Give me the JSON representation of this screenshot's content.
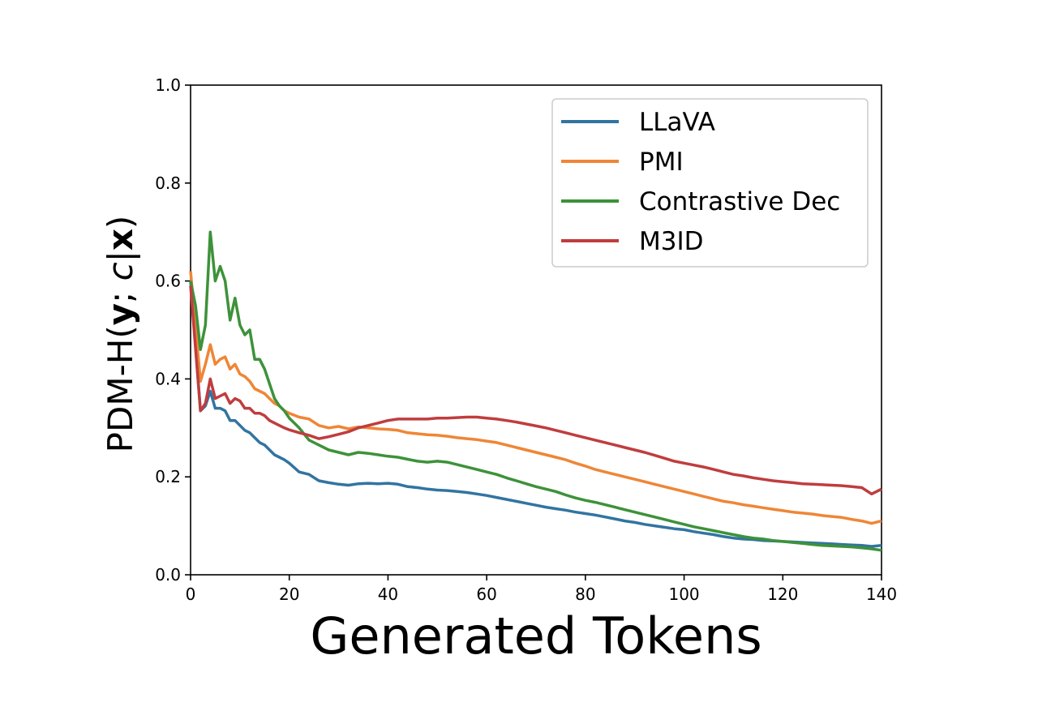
{
  "chart_data": {
    "type": "line",
    "xlabel": "Generated Tokens",
    "ylabel": {
      "prefix": "PDM-H(",
      "y": "y",
      "sep": "; ",
      "c": "c",
      "bar": "|",
      "x": "x",
      "suffix": ")"
    },
    "xlim": [
      0,
      140
    ],
    "ylim": [
      0.0,
      1.0
    ],
    "xticks": [
      "0",
      "20",
      "40",
      "60",
      "80",
      "100",
      "120",
      "140"
    ],
    "xtick_values": [
      0,
      20,
      40,
      60,
      80,
      100,
      120,
      140
    ],
    "yticks": [
      "0.0",
      "0.2",
      "0.4",
      "0.6",
      "0.8",
      "1.0"
    ],
    "ytick_values": [
      0.0,
      0.2,
      0.4,
      0.6,
      0.8,
      1.0
    ],
    "grid": false,
    "legend_position": "upper right",
    "series": [
      {
        "name": "LLaVA",
        "color": "#3274a1",
        "x": [
          0,
          2,
          3,
          4,
          5,
          6,
          7,
          8,
          9,
          10,
          11,
          12,
          13,
          14,
          15,
          16,
          17,
          18,
          19,
          20,
          22,
          24,
          26,
          28,
          30,
          32,
          34,
          36,
          38,
          40,
          42,
          44,
          46,
          48,
          50,
          52,
          54,
          56,
          58,
          60,
          62,
          64,
          66,
          68,
          70,
          72,
          74,
          76,
          78,
          80,
          82,
          84,
          86,
          88,
          90,
          92,
          94,
          96,
          98,
          100,
          102,
          104,
          106,
          108,
          110,
          112,
          114,
          116,
          118,
          120,
          122,
          124,
          126,
          128,
          130,
          132,
          134,
          136,
          138,
          140
        ],
        "y": [
          0.6,
          0.335,
          0.345,
          0.375,
          0.34,
          0.34,
          0.335,
          0.315,
          0.315,
          0.305,
          0.295,
          0.29,
          0.28,
          0.27,
          0.265,
          0.255,
          0.245,
          0.24,
          0.235,
          0.228,
          0.21,
          0.205,
          0.192,
          0.188,
          0.185,
          0.183,
          0.186,
          0.187,
          0.186,
          0.187,
          0.185,
          0.18,
          0.178,
          0.175,
          0.173,
          0.172,
          0.17,
          0.168,
          0.165,
          0.162,
          0.158,
          0.154,
          0.15,
          0.146,
          0.142,
          0.138,
          0.135,
          0.132,
          0.128,
          0.125,
          0.122,
          0.118,
          0.114,
          0.11,
          0.107,
          0.103,
          0.1,
          0.097,
          0.094,
          0.092,
          0.088,
          0.085,
          0.082,
          0.078,
          0.075,
          0.073,
          0.072,
          0.07,
          0.069,
          0.068,
          0.067,
          0.066,
          0.065,
          0.064,
          0.063,
          0.062,
          0.061,
          0.06,
          0.058,
          0.06
        ]
      },
      {
        "name": "PMI",
        "color": "#ef8636",
        "x": [
          0,
          2,
          3,
          4,
          5,
          6,
          7,
          8,
          9,
          10,
          11,
          12,
          13,
          14,
          15,
          16,
          17,
          18,
          19,
          20,
          22,
          24,
          26,
          28,
          30,
          32,
          34,
          36,
          38,
          40,
          42,
          44,
          46,
          48,
          50,
          52,
          54,
          56,
          58,
          60,
          62,
          64,
          66,
          68,
          70,
          72,
          74,
          76,
          78,
          80,
          82,
          84,
          86,
          88,
          90,
          92,
          94,
          96,
          98,
          100,
          102,
          104,
          106,
          108,
          110,
          112,
          114,
          116,
          118,
          120,
          122,
          124,
          126,
          128,
          130,
          132,
          134,
          136,
          138,
          140
        ],
        "y": [
          0.62,
          0.395,
          0.43,
          0.47,
          0.43,
          0.44,
          0.445,
          0.42,
          0.43,
          0.41,
          0.405,
          0.395,
          0.38,
          0.375,
          0.37,
          0.36,
          0.35,
          0.345,
          0.335,
          0.33,
          0.322,
          0.318,
          0.305,
          0.3,
          0.303,
          0.298,
          0.302,
          0.3,
          0.298,
          0.297,
          0.295,
          0.29,
          0.288,
          0.286,
          0.285,
          0.283,
          0.28,
          0.278,
          0.276,
          0.273,
          0.27,
          0.265,
          0.26,
          0.255,
          0.25,
          0.245,
          0.24,
          0.235,
          0.228,
          0.222,
          0.215,
          0.21,
          0.205,
          0.2,
          0.195,
          0.19,
          0.185,
          0.18,
          0.175,
          0.17,
          0.165,
          0.16,
          0.155,
          0.15,
          0.147,
          0.143,
          0.14,
          0.137,
          0.134,
          0.131,
          0.128,
          0.126,
          0.124,
          0.121,
          0.119,
          0.117,
          0.113,
          0.11,
          0.105,
          0.11
        ]
      },
      {
        "name": "Contrastive Dec",
        "color": "#3d923a",
        "x": [
          0,
          1,
          2,
          3,
          4,
          5,
          6,
          7,
          8,
          9,
          10,
          11,
          12,
          13,
          14,
          15,
          16,
          17,
          18,
          19,
          20,
          22,
          24,
          26,
          28,
          30,
          32,
          34,
          36,
          38,
          40,
          42,
          44,
          46,
          48,
          50,
          52,
          54,
          56,
          58,
          60,
          62,
          64,
          66,
          68,
          70,
          72,
          74,
          76,
          78,
          80,
          82,
          84,
          86,
          88,
          90,
          92,
          94,
          96,
          98,
          100,
          102,
          104,
          106,
          108,
          110,
          112,
          114,
          116,
          118,
          120,
          122,
          124,
          126,
          128,
          130,
          132,
          134,
          136,
          138,
          140
        ],
        "y": [
          0.6,
          0.55,
          0.46,
          0.51,
          0.7,
          0.6,
          0.63,
          0.6,
          0.52,
          0.565,
          0.51,
          0.49,
          0.5,
          0.44,
          0.44,
          0.42,
          0.39,
          0.36,
          0.345,
          0.335,
          0.32,
          0.3,
          0.275,
          0.265,
          0.255,
          0.25,
          0.245,
          0.25,
          0.248,
          0.245,
          0.242,
          0.24,
          0.236,
          0.232,
          0.23,
          0.232,
          0.23,
          0.225,
          0.22,
          0.215,
          0.21,
          0.205,
          0.198,
          0.192,
          0.186,
          0.18,
          0.175,
          0.17,
          0.163,
          0.157,
          0.152,
          0.148,
          0.143,
          0.138,
          0.133,
          0.128,
          0.123,
          0.118,
          0.113,
          0.108,
          0.103,
          0.098,
          0.094,
          0.09,
          0.086,
          0.082,
          0.078,
          0.075,
          0.073,
          0.07,
          0.068,
          0.066,
          0.064,
          0.062,
          0.06,
          0.059,
          0.058,
          0.057,
          0.055,
          0.053,
          0.05
        ]
      },
      {
        "name": "M3ID",
        "color": "#c03d3e",
        "x": [
          0,
          2,
          3,
          4,
          5,
          6,
          7,
          8,
          9,
          10,
          11,
          12,
          13,
          14,
          15,
          16,
          17,
          18,
          19,
          20,
          22,
          24,
          26,
          28,
          30,
          32,
          34,
          36,
          38,
          40,
          42,
          44,
          46,
          48,
          50,
          52,
          54,
          56,
          58,
          60,
          62,
          64,
          66,
          68,
          70,
          72,
          74,
          76,
          78,
          80,
          82,
          84,
          86,
          88,
          90,
          92,
          94,
          96,
          98,
          100,
          102,
          104,
          106,
          108,
          110,
          112,
          114,
          116,
          118,
          120,
          122,
          124,
          126,
          128,
          130,
          132,
          134,
          136,
          138,
          140
        ],
        "y": [
          0.59,
          0.335,
          0.35,
          0.4,
          0.36,
          0.365,
          0.37,
          0.35,
          0.36,
          0.355,
          0.34,
          0.34,
          0.33,
          0.33,
          0.325,
          0.315,
          0.31,
          0.305,
          0.3,
          0.296,
          0.29,
          0.285,
          0.278,
          0.282,
          0.287,
          0.292,
          0.3,
          0.305,
          0.31,
          0.315,
          0.318,
          0.318,
          0.318,
          0.318,
          0.32,
          0.32,
          0.321,
          0.322,
          0.322,
          0.32,
          0.318,
          0.315,
          0.312,
          0.308,
          0.304,
          0.3,
          0.295,
          0.29,
          0.285,
          0.28,
          0.275,
          0.27,
          0.265,
          0.26,
          0.255,
          0.25,
          0.244,
          0.238,
          0.232,
          0.228,
          0.224,
          0.22,
          0.215,
          0.21,
          0.205,
          0.202,
          0.198,
          0.195,
          0.192,
          0.19,
          0.188,
          0.186,
          0.185,
          0.184,
          0.183,
          0.182,
          0.18,
          0.178,
          0.165,
          0.175
        ]
      }
    ]
  }
}
